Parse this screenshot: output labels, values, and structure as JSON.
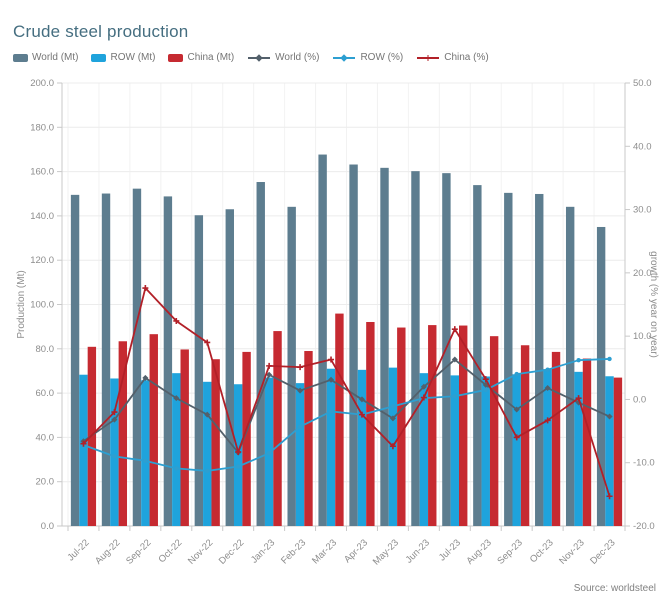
{
  "title": "Crude steel production",
  "source": "Source: worldsteel",
  "colors": {
    "title": "#456e80",
    "axis_text": "#8d8d8d",
    "axis_line": "#c9c9c9",
    "gridline": "#ececec",
    "legend_text": "#757575",
    "world_bar": "#5d7d8f",
    "row_bar": "#1fa3dc",
    "china_bar": "#c62a31",
    "world_line": "#53606b",
    "row_line": "#2d9fd1",
    "china_line": "#b22028"
  },
  "chart_data": {
    "type": "bar",
    "subtype": "grouped bars with overlaid lines (dual axis)",
    "title": "Crude steel production",
    "legend_position": "top-left",
    "grid": true,
    "categories": [
      "Jul-22",
      "Aug-22",
      "Sep-22",
      "Oct-22",
      "Nov-22",
      "Dec-22",
      "Jan-23",
      "Feb-23",
      "Mar-23",
      "Apr-23",
      "May-23",
      "Jun-23",
      "Jul-23",
      "Aug-23",
      "Sep-23",
      "Oct-23",
      "Nov-23",
      "Dec-23"
    ],
    "left_axis": {
      "label": "Production (Mt)",
      "min": 0,
      "max": 200,
      "tick_step": 20
    },
    "right_axis": {
      "label": "growth (% year on year)",
      "min": -20,
      "max": 50,
      "tick_step": 10
    },
    "series": [
      {
        "name": "World (Mt)",
        "type": "bar",
        "axis": "left",
        "color": "#5d7d8f",
        "values": [
          149.5,
          150.1,
          152.3,
          148.8,
          140.3,
          143.0,
          155.3,
          144.1,
          167.7,
          163.2,
          161.7,
          160.2,
          159.3,
          153.9,
          150.4,
          149.9,
          144.1,
          135.0
        ]
      },
      {
        "name": "ROW (Mt)",
        "type": "bar",
        "axis": "left",
        "color": "#1fa3dc",
        "values": [
          68.3,
          66.6,
          65.8,
          69.0,
          65.1,
          64.0,
          67.0,
          64.5,
          71.0,
          70.5,
          71.5,
          69.0,
          68.0,
          67.5,
          68.5,
          70.8,
          69.6,
          67.6
        ]
      },
      {
        "name": "China (Mt)",
        "type": "bar",
        "axis": "left",
        "color": "#c62a31",
        "values": [
          80.9,
          83.4,
          86.6,
          79.7,
          75.3,
          78.6,
          88.0,
          79.0,
          95.9,
          92.1,
          89.6,
          90.7,
          90.5,
          85.7,
          81.6,
          78.6,
          75.6,
          67.0
        ]
      },
      {
        "name": "World (%)",
        "type": "line",
        "axis": "right",
        "color": "#53606b",
        "marker": "diamond",
        "values": [
          -6.6,
          -3.2,
          3.4,
          0.2,
          -2.4,
          -8.4,
          3.9,
          1.4,
          3.1,
          0.0,
          -3.0,
          2.0,
          6.3,
          2.3,
          -1.6,
          1.8,
          -0.5,
          -2.7
        ]
      },
      {
        "name": "ROW (%)",
        "type": "line",
        "axis": "right",
        "color": "#2d9fd1",
        "marker": "circle",
        "values": [
          -7.2,
          -9.0,
          -9.7,
          -10.9,
          -11.3,
          -10.6,
          -8.5,
          -4.3,
          -1.9,
          -2.4,
          -1.1,
          0.2,
          0.5,
          1.5,
          4.0,
          4.7,
          6.2,
          6.4
        ]
      },
      {
        "name": "China (%)",
        "type": "line",
        "axis": "right",
        "color": "#b22028",
        "marker": "plus",
        "values": [
          -7.0,
          -2.0,
          17.6,
          12.4,
          9.0,
          -8.3,
          5.3,
          5.1,
          6.3,
          -2.4,
          -7.4,
          0.3,
          11.1,
          3.2,
          -6.0,
          -3.3,
          0.2,
          -15.3
        ]
      }
    ]
  }
}
